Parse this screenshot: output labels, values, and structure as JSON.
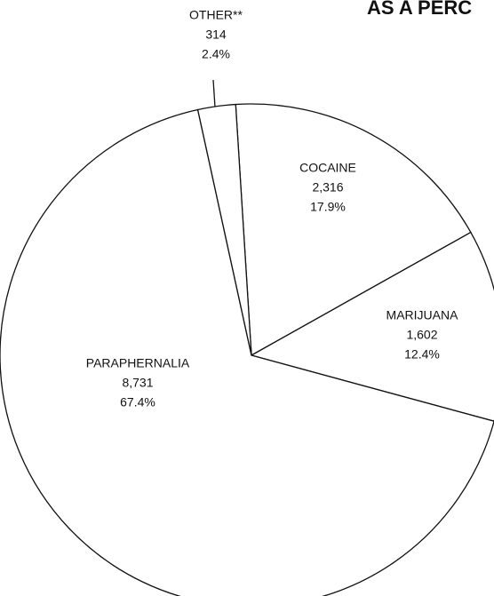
{
  "chart_data": {
    "type": "pie",
    "title": "AS A PERC",
    "categories": [
      "COCAINE",
      "MARIJUANA",
      "PARAPHERNALIA",
      "OTHER**"
    ],
    "values": [
      2316,
      1602,
      8731,
      314
    ],
    "value_labels": [
      "2,316",
      "1,602",
      "8,731",
      "314"
    ],
    "percent_labels": [
      "17.9%",
      "12.4%",
      "67.4%",
      "2.4%"
    ]
  }
}
